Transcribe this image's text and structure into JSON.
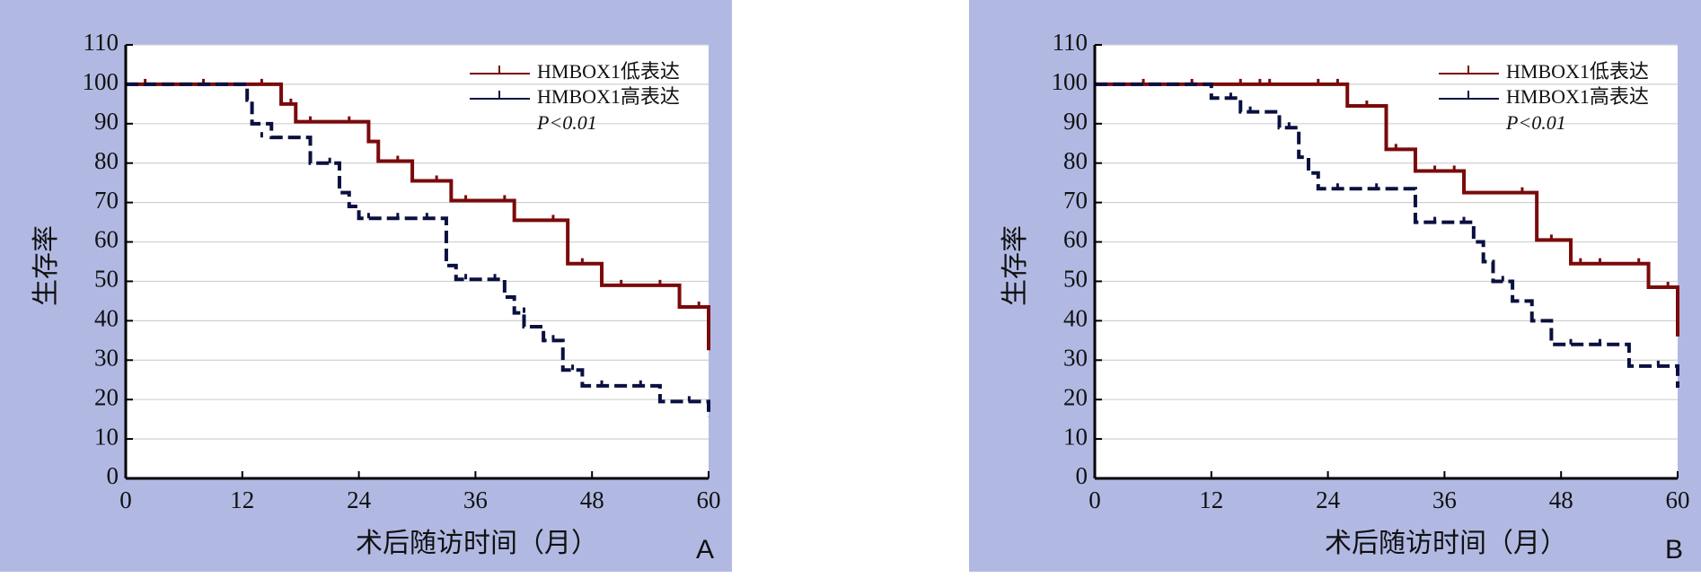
{
  "chart_data": [
    {
      "type": "km",
      "panel_label": "A",
      "x_label": "术后随访时间（月）",
      "y_label": "生存率",
      "annotation": "P<0.01",
      "xlim": [
        0,
        60
      ],
      "ylim": [
        0,
        110
      ],
      "xticks": [
        0,
        12,
        24,
        36,
        48,
        60
      ],
      "yticks": [
        0,
        10,
        20,
        30,
        40,
        50,
        60,
        70,
        80,
        90,
        100,
        110
      ],
      "grid": true,
      "series": [
        {
          "name": "HMBOX1低表达",
          "color": "#7a0a0a",
          "dashed": false,
          "x": [
            0,
            16,
            17.5,
            25,
            26,
            29.5,
            33.5,
            40,
            45.5,
            49,
            57,
            60
          ],
          "values": [
            100,
            95,
            90.5,
            85.5,
            80.5,
            75.5,
            70.5,
            65.5,
            54.5,
            49,
            43.5,
            32.5
          ],
          "censor_x": [
            2,
            8,
            14,
            17,
            19,
            23,
            28,
            32,
            35,
            39,
            44,
            47,
            51,
            55,
            59
          ],
          "censor_values": [
            100,
            100,
            100,
            95,
            90.5,
            90.5,
            80.5,
            75.5,
            70.5,
            70.5,
            65.5,
            54.5,
            49,
            49,
            43.5
          ]
        },
        {
          "name": "HMBOX1高表达",
          "color": "#0a1040",
          "dashed": true,
          "x": [
            0,
            12,
            12.5,
            13,
            15,
            19,
            22,
            23,
            24,
            33,
            34,
            39,
            40,
            41,
            43,
            45,
            47,
            55,
            60
          ],
          "values": [
            100,
            100,
            96,
            90,
            86.5,
            80,
            72.5,
            69,
            66,
            54,
            50.5,
            46,
            42,
            38.5,
            35,
            27.5,
            23.5,
            19.5,
            15.5
          ],
          "censor_x": [
            14,
            21,
            25,
            28,
            31,
            35,
            38,
            41,
            44,
            46,
            49,
            53,
            58
          ],
          "censor_values": [
            86.5,
            80,
            66,
            66,
            66,
            50.5,
            50.5,
            42,
            35,
            27.5,
            23.5,
            23.5,
            19.5
          ]
        }
      ]
    },
    {
      "type": "km",
      "panel_label": "B",
      "x_label": "术后随访时间（月）",
      "y_label": "生存率",
      "annotation": "P<0.01",
      "xlim": [
        0,
        60
      ],
      "ylim": [
        0,
        110
      ],
      "xticks": [
        0,
        12,
        24,
        36,
        48,
        60
      ],
      "yticks": [
        0,
        10,
        20,
        30,
        40,
        50,
        60,
        70,
        80,
        90,
        100,
        110
      ],
      "grid": true,
      "series": [
        {
          "name": "HMBOX1低表达",
          "color": "#7a0a0a",
          "dashed": false,
          "x": [
            0,
            26,
            30,
            33,
            38,
            45.5,
            49,
            57,
            60
          ],
          "values": [
            100,
            94.5,
            83.5,
            78,
            72.5,
            60.5,
            54.5,
            48.5,
            36
          ],
          "censor_x": [
            5,
            10,
            15,
            17,
            18,
            23,
            25,
            28,
            31,
            35,
            37,
            44,
            47,
            50,
            52,
            56,
            59
          ],
          "censor_values": [
            100,
            100,
            100,
            100,
            100,
            100,
            100,
            94.5,
            83.5,
            78,
            78,
            72.5,
            60.5,
            54.5,
            54.5,
            54.5,
            48.5
          ]
        },
        {
          "name": "HMBOX1高表达",
          "color": "#0a1040",
          "dashed": true,
          "x": [
            0,
            12,
            15,
            19,
            21,
            22,
            23,
            33,
            39,
            40,
            41,
            43,
            45,
            47,
            55,
            60
          ],
          "values": [
            100,
            96.5,
            93,
            89,
            81.5,
            77.5,
            73.5,
            65,
            60,
            55,
            50,
            45,
            40,
            34,
            28.5,
            23
          ],
          "censor_x": [
            14,
            16,
            20,
            25,
            29,
            35,
            38,
            42,
            49,
            52,
            58
          ],
          "censor_values": [
            96.5,
            93,
            89,
            73.5,
            73.5,
            65,
            65,
            50,
            34,
            34,
            28.5
          ]
        }
      ]
    }
  ]
}
